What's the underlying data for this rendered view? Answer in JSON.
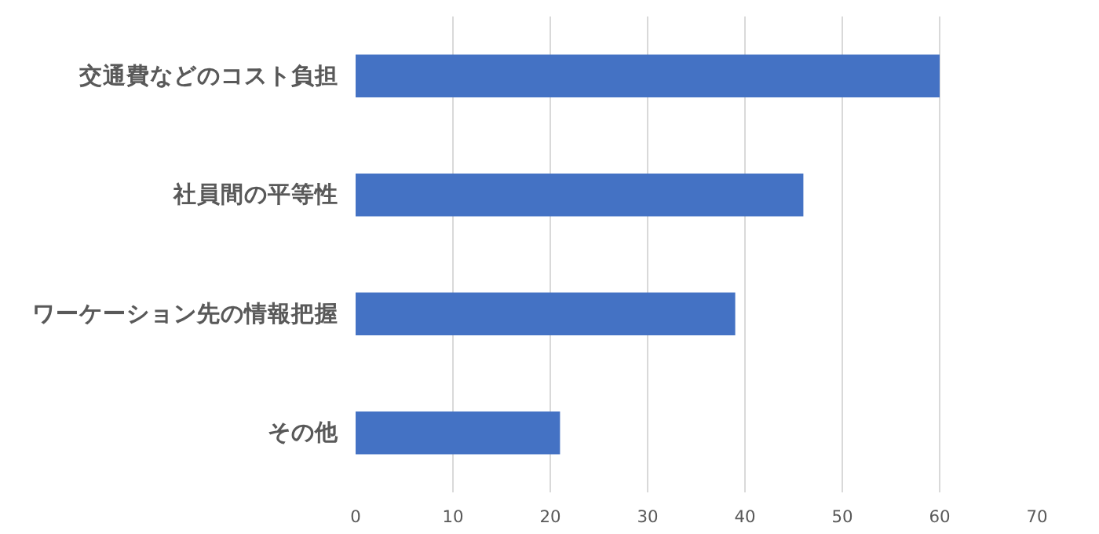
{
  "chart_data": {
    "type": "bar",
    "orientation": "horizontal",
    "categories": [
      "交通費などのコスト負担",
      "社員間の平等性",
      "ワーケーション先の情報把握",
      "その他"
    ],
    "values": [
      60,
      46,
      39,
      21
    ],
    "color": "#4472c4",
    "xlim": [
      0,
      70
    ],
    "xticks": [
      0,
      10,
      20,
      30,
      40,
      50,
      60,
      70
    ],
    "grid": "x"
  }
}
